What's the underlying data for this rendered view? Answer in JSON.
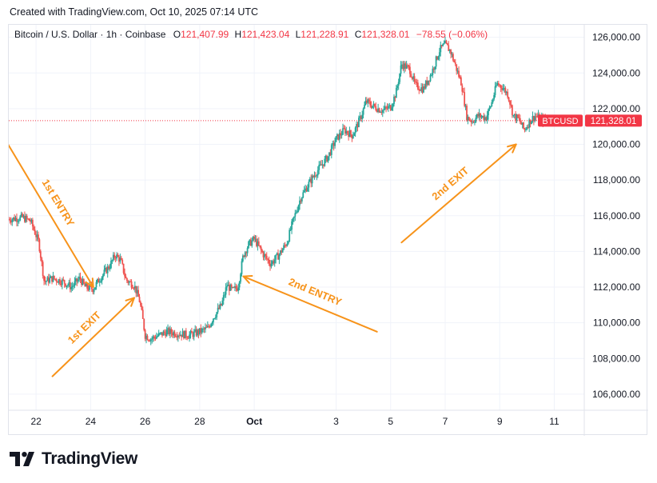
{
  "header": {
    "created_note": "Created with TradingView.com, Oct 10, 2025 07:14 UTC"
  },
  "legend": {
    "symbol_text": "Bitcoin / U.S. Dollar · 1h · Coinbase",
    "open_label": "O",
    "open_value": "121,407.99",
    "high_label": "H",
    "high_value": "121,423.04",
    "low_label": "L",
    "low_value": "121,228.91",
    "close_label": "C",
    "close_value": "121,328.01",
    "change_text": "−78.55 (−0.06%)"
  },
  "price_tag": {
    "symbol": "BTCUSD",
    "price": "121,328.01"
  },
  "logo": {
    "text": "TradingView"
  },
  "colors": {
    "up": "#26a69a",
    "down": "#ef5350",
    "annotation": "#f7931a",
    "grid": "#f0f3fa",
    "tag_red": "#f23645",
    "text": "#131722"
  },
  "chart_data": {
    "type": "candlestick",
    "symbol": "BTCUSD",
    "interval": "1h",
    "exchange": "Coinbase",
    "y_ticks": [
      106000,
      108000,
      110000,
      112000,
      114000,
      116000,
      118000,
      120000,
      122000,
      124000,
      126000
    ],
    "y_tick_labels": [
      "106,000.00",
      "108,000.00",
      "110,000.00",
      "112,000.00",
      "114,000.00",
      "116,000.00",
      "118,000.00",
      "120,000.00",
      "122,000.00",
      "124,000.00",
      "126,000.00"
    ],
    "x_ticks": [
      22,
      24,
      26,
      28,
      30,
      33,
      35,
      37,
      39,
      41
    ],
    "x_tick_labels": [
      "22",
      "24",
      "26",
      "28",
      "Oct",
      "3",
      "5",
      "7",
      "9",
      "11"
    ],
    "x_bold_labels": [
      "Oct"
    ],
    "xlim": [
      21.0,
      42.1
    ],
    "ylim": [
      105100,
      126700
    ],
    "last_price": 121328.01,
    "price_path": [
      [
        21.0,
        115800
      ],
      [
        21.5,
        115900
      ],
      [
        21.8,
        115700
      ],
      [
        22.1,
        114500
      ],
      [
        22.3,
        112300
      ],
      [
        22.6,
        112500
      ],
      [
        23.0,
        112300
      ],
      [
        23.3,
        112000
      ],
      [
        23.6,
        112500
      ],
      [
        23.8,
        112000
      ],
      [
        24.1,
        111900
      ],
      [
        24.3,
        112400
      ],
      [
        24.7,
        113200
      ],
      [
        24.9,
        113800
      ],
      [
        25.1,
        113500
      ],
      [
        25.3,
        112400
      ],
      [
        25.6,
        112100
      ],
      [
        25.8,
        111200
      ],
      [
        25.9,
        110300
      ],
      [
        26.0,
        109300
      ],
      [
        26.2,
        109100
      ],
      [
        26.5,
        109300
      ],
      [
        26.8,
        109500
      ],
      [
        27.2,
        109400
      ],
      [
        27.6,
        109300
      ],
      [
        28.0,
        109500
      ],
      [
        28.3,
        109700
      ],
      [
        28.5,
        110300
      ],
      [
        28.8,
        111000
      ],
      [
        29.0,
        112100
      ],
      [
        29.2,
        111800
      ],
      [
        29.4,
        112000
      ],
      [
        29.6,
        113800
      ],
      [
        29.8,
        114400
      ],
      [
        30.0,
        114700
      ],
      [
        30.3,
        113900
      ],
      [
        30.6,
        113300
      ],
      [
        30.9,
        113800
      ],
      [
        31.2,
        114500
      ],
      [
        31.4,
        115600
      ],
      [
        31.7,
        117000
      ],
      [
        32.0,
        117800
      ],
      [
        32.3,
        118500
      ],
      [
        32.7,
        119300
      ],
      [
        33.0,
        120300
      ],
      [
        33.3,
        120800
      ],
      [
        33.6,
        120500
      ],
      [
        33.9,
        121500
      ],
      [
        34.1,
        122400
      ],
      [
        34.4,
        122100
      ],
      [
        34.7,
        121900
      ],
      [
        35.0,
        122100
      ],
      [
        35.2,
        122900
      ],
      [
        35.4,
        124500
      ],
      [
        35.7,
        124200
      ],
      [
        35.9,
        123300
      ],
      [
        36.2,
        123100
      ],
      [
        36.5,
        124000
      ],
      [
        36.8,
        125300
      ],
      [
        37.0,
        125600
      ],
      [
        37.2,
        125200
      ],
      [
        37.4,
        124300
      ],
      [
        37.6,
        123400
      ],
      [
        37.8,
        121500
      ],
      [
        38.0,
        121300
      ],
      [
        38.2,
        121600
      ],
      [
        38.5,
        121500
      ],
      [
        38.7,
        122300
      ],
      [
        38.9,
        123400
      ],
      [
        39.1,
        123200
      ],
      [
        39.3,
        122800
      ],
      [
        39.5,
        121600
      ],
      [
        39.7,
        121400
      ],
      [
        39.9,
        120800
      ],
      [
        40.1,
        121300
      ],
      [
        40.3,
        121600
      ],
      [
        40.5,
        121400
      ],
      [
        40.7,
        121328
      ]
    ],
    "annotations": [
      {
        "label": "1st ENTRY",
        "from": [
          20.7,
          120700
        ],
        "to": [
          24.1,
          112000
        ]
      },
      {
        "label": "1st EXIT",
        "from": [
          22.6,
          107000
        ],
        "to": [
          25.6,
          111400
        ]
      },
      {
        "label": "2nd ENTRY",
        "from": [
          34.5,
          109500
        ],
        "to": [
          29.6,
          112600
        ]
      },
      {
        "label": "2nd EXIT",
        "from": [
          35.4,
          114500
        ],
        "to": [
          39.6,
          120000
        ]
      }
    ]
  }
}
